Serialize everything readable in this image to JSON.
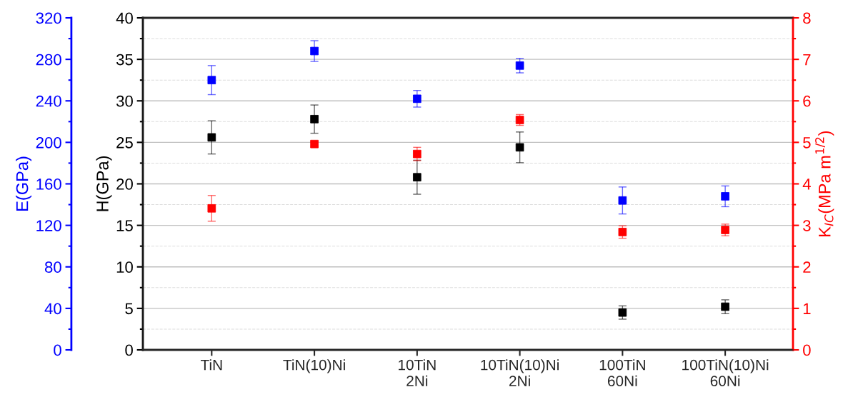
{
  "chart_data": {
    "type": "scatter",
    "categories": [
      "TiN",
      "TiN(10)Ni",
      "10TiN\n2Ni",
      "10TiN(10)Ni\n2Ni",
      "100TiN\n60Ni",
      "100TiN(10)Ni\n60Ni"
    ],
    "ylabel": "H(GPa)",
    "y2label": "K$_{IC}$(MPa m$^{1/2}$)",
    "y3label": "E(GPa)",
    "ylim": [
      0,
      40
    ],
    "yticks": [
      0,
      5,
      10,
      15,
      20,
      25,
      30,
      35,
      40
    ],
    "y2lim": [
      0,
      8
    ],
    "y2ticks": [
      0,
      1,
      2,
      3,
      4,
      5,
      6,
      7,
      8
    ],
    "y3lim": [
      0,
      320
    ],
    "y3ticks": [
      0,
      40,
      80,
      120,
      160,
      200,
      240,
      280,
      320
    ],
    "marker": "square",
    "grid": "y",
    "series": [
      {
        "color": "#000000",
        "axis": "y",
        "values": [
          25.6,
          27.8,
          20.8,
          24.4,
          4.5,
          5.2
        ],
        "errors": [
          2.0,
          1.7,
          2.05,
          1.85,
          0.8,
          0.83
        ]
      },
      {
        "color": "#0000ff",
        "axis": "y3",
        "values": [
          260,
          288,
          242,
          274,
          144,
          148
        ],
        "errors": [
          14,
          10,
          8,
          7,
          13,
          10
        ]
      },
      {
        "color": "#ff0000",
        "axis": "y2",
        "values": [
          3.41,
          4.96,
          4.72,
          5.54,
          2.84,
          2.89
        ],
        "errors": [
          0.31,
          0.05,
          0.16,
          0.13,
          0.15,
          0.14
        ]
      }
    ]
  }
}
